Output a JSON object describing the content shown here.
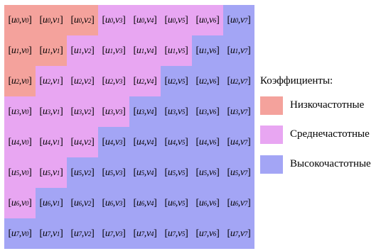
{
  "colors": {
    "low": "#f4a29c",
    "mid": "#e8a6f2",
    "high": "#a3a5f5"
  },
  "grid": {
    "rows": 8,
    "cols": 8,
    "u_symbol": "u",
    "v_symbol": "v",
    "zones": [
      [
        "low",
        "low",
        "low",
        "mid",
        "mid",
        "mid",
        "mid",
        "high"
      ],
      [
        "low",
        "low",
        "mid",
        "mid",
        "mid",
        "mid",
        "high",
        "high"
      ],
      [
        "low",
        "mid",
        "mid",
        "mid",
        "mid",
        "high",
        "high",
        "high"
      ],
      [
        "mid",
        "mid",
        "mid",
        "mid",
        "high",
        "high",
        "high",
        "high"
      ],
      [
        "mid",
        "mid",
        "mid",
        "high",
        "high",
        "high",
        "high",
        "high"
      ],
      [
        "mid",
        "mid",
        "high",
        "high",
        "high",
        "high",
        "high",
        "high"
      ],
      [
        "mid",
        "high",
        "high",
        "high",
        "high",
        "high",
        "high",
        "high"
      ],
      [
        "high",
        "high",
        "high",
        "high",
        "high",
        "high",
        "high",
        "high"
      ]
    ]
  },
  "legend": {
    "title": "Коэффициенты:",
    "items": [
      {
        "zone": "low",
        "label": "Низкочастотные",
        "icon": "low-frequency-swatch"
      },
      {
        "zone": "mid",
        "label": "Среднечастотные",
        "icon": "mid-frequency-swatch"
      },
      {
        "zone": "high",
        "label": "Высокочастотные",
        "icon": "high-frequency-swatch"
      }
    ]
  }
}
